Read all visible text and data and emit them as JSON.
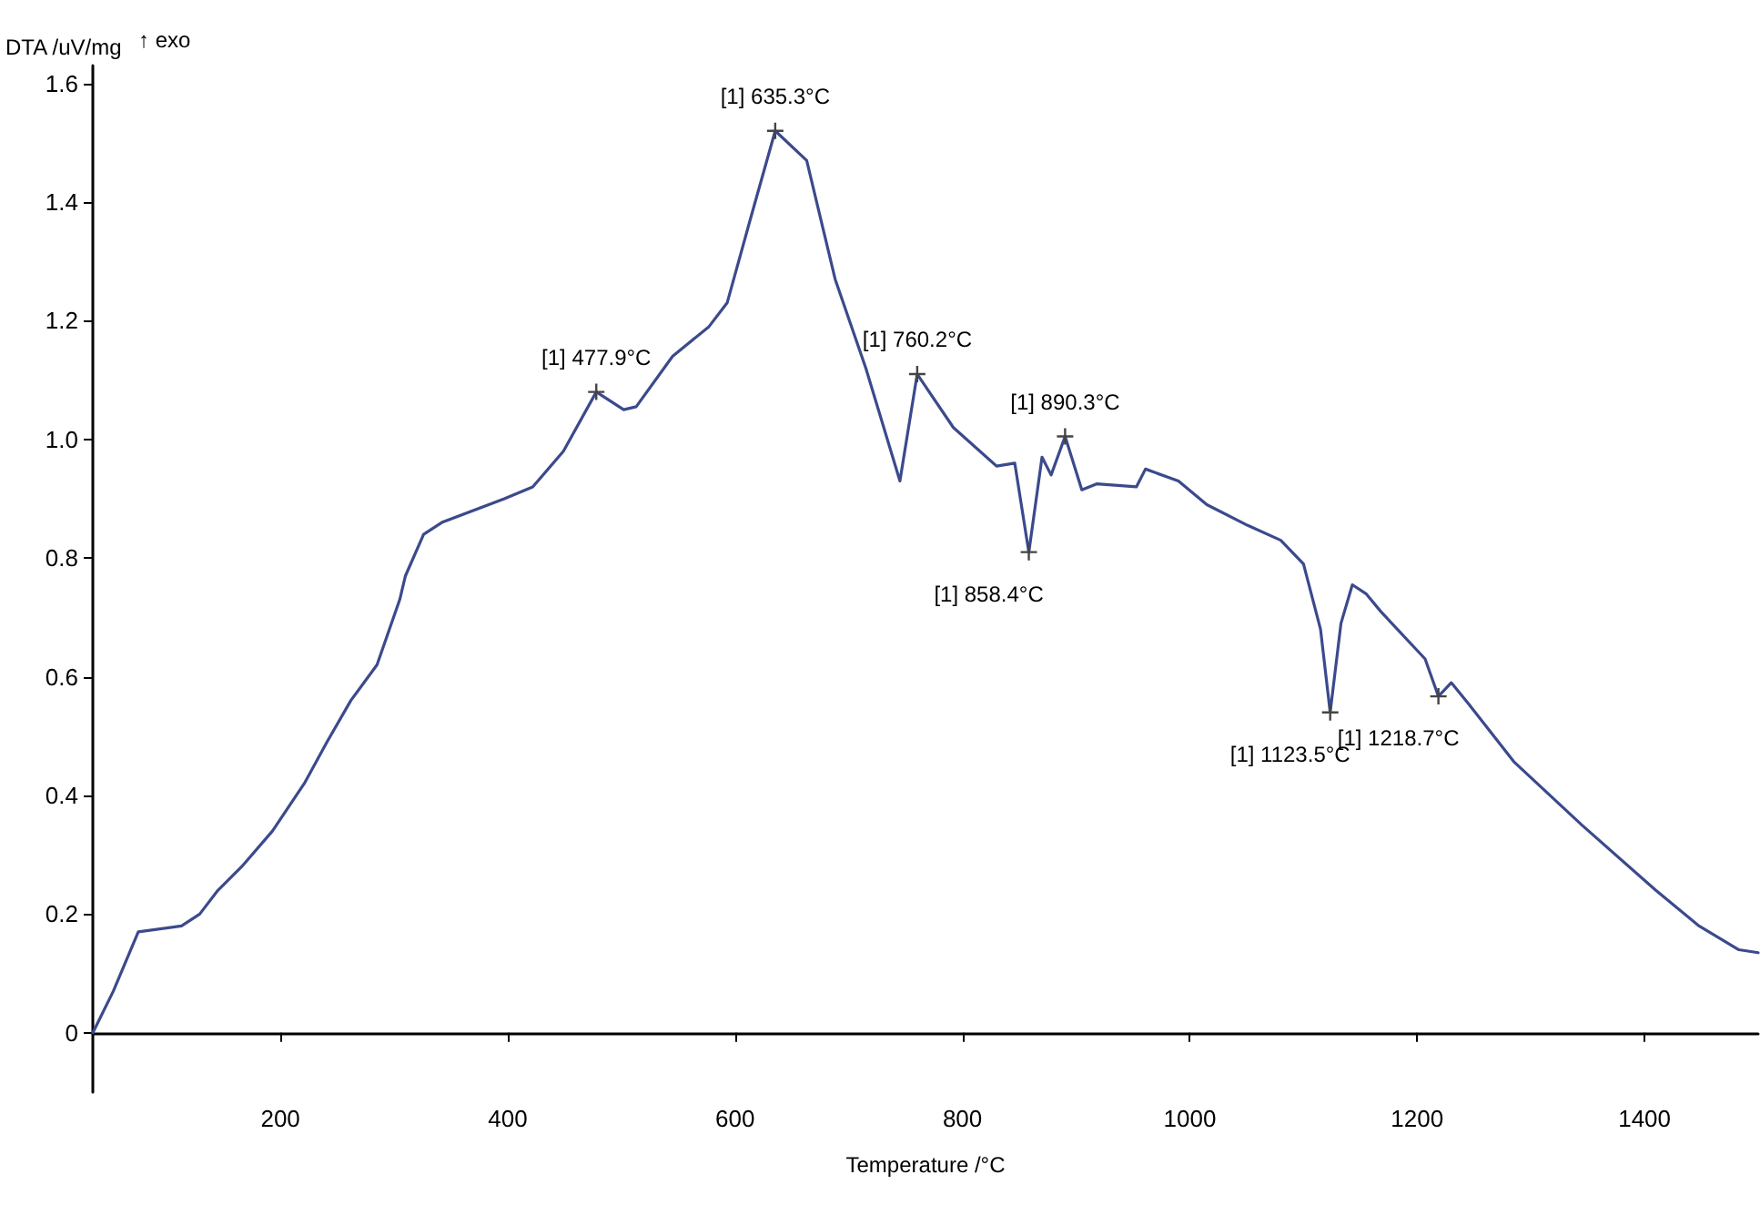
{
  "chart_data": {
    "type": "line",
    "xlabel": "Temperature /°C",
    "ylabel": "DTA /uV/mg",
    "xlim": [
      35,
      1500
    ],
    "ylim": [
      -0.1,
      1.63
    ],
    "xticks": [
      200,
      400,
      600,
      800,
      1000,
      1200,
      1400
    ],
    "yticks": [
      0,
      0.2,
      0.4,
      0.6,
      0.8,
      {
        "value": 1,
        "label": "1.0"
      },
      1.2,
      1.4,
      1.6
    ],
    "marker": "none",
    "line_style": "solid",
    "series": [
      {
        "color": "#3b4a8c",
        "x": [
          35,
          53,
          75,
          113,
          129,
          145,
          166,
          193,
          221,
          241,
          262,
          285,
          305,
          310,
          326,
          342,
          397,
          422,
          449,
          477.9,
          502,
          513,
          545,
          577,
          593,
          614,
          635.3,
          663,
          688,
          715,
          745,
          760.2,
          792,
          830,
          846,
          858.4,
          870,
          878,
          890.3,
          905,
          918,
          953,
          961,
          990,
          1015,
          1051,
          1080,
          1100,
          1115,
          1123.5,
          1133,
          1143,
          1155,
          1168,
          1207,
          1218.7,
          1230,
          1245,
          1285,
          1345,
          1410,
          1448,
          1483,
          1500
        ],
        "values": [
          0,
          0.07,
          0.17,
          0.18,
          0.2,
          0.24,
          0.28,
          0.34,
          0.42,
          0.49,
          0.56,
          0.62,
          0.73,
          0.77,
          0.84,
          0.86,
          0.9,
          0.92,
          0.98,
          1.08,
          1.05,
          1.055,
          1.14,
          1.19,
          1.23,
          1.375,
          1.52,
          1.47,
          1.27,
          1.12,
          0.93,
          1.11,
          1.02,
          0.955,
          0.96,
          0.81,
          0.97,
          0.94,
          1.005,
          0.915,
          0.925,
          0.92,
          0.95,
          0.93,
          0.89,
          0.855,
          0.83,
          0.79,
          0.68,
          0.54,
          0.69,
          0.755,
          0.74,
          0.71,
          0.63,
          0.567,
          0.59,
          0.555,
          0.457,
          0.35,
          0.24,
          0.18,
          0.14,
          0.135
        ]
      }
    ],
    "annotations": [
      "↑ exo",
      {
        "text": "[1] 477.9°C",
        "x": 477.9,
        "y": 1.08
      },
      {
        "text": "[1] 635.3°C",
        "x": 635.3,
        "y": 1.52
      },
      {
        "text": "[1] 760.2°C",
        "x": 760.2,
        "y": 1.11
      },
      {
        "text": "[1] 890.3°C",
        "x": 890.3,
        "y": 1.005
      },
      {
        "text": "[1] 858.4°C",
        "x": 858.4,
        "y": 0.81
      },
      {
        "text": "[1] 1123.5°C",
        "x": 1123.5,
        "y": 0.54
      },
      {
        "text": "[1] 1218.7°C",
        "x": 1218.7,
        "y": 0.567
      }
    ]
  }
}
